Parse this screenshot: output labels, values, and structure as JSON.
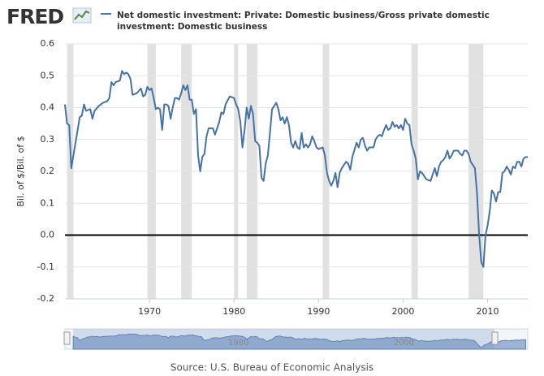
{
  "logo": "FRED",
  "chart_data": {
    "type": "line",
    "y_label": "Bil. of $/Bil. of $",
    "source": "Source: U.S. Bureau of Economic Analysis",
    "xlim": [
      1960,
      2014.75
    ],
    "ylim": [
      -0.2,
      0.6
    ],
    "xticks": [
      1970,
      1980,
      1990,
      2000,
      2010
    ],
    "yticks": [
      0.6,
      0.5,
      0.4,
      0.3,
      0.2,
      0.1,
      {
        "value": 0,
        "label": "0.0"
      },
      -0.1,
      -0.2
    ],
    "grid": true,
    "zero_line": true,
    "recessions": [
      [
        1960.25,
        1961.0
      ],
      [
        1969.75,
        1970.75
      ],
      [
        1973.75,
        1975.0
      ],
      [
        1980.0,
        1980.5
      ],
      [
        1981.5,
        1982.75
      ],
      [
        1990.5,
        1991.25
      ],
      [
        2001.0,
        2001.75
      ],
      [
        2007.75,
        2009.5
      ]
    ],
    "x": [
      1960.0,
      1960.25,
      1960.5,
      1960.75,
      1961.0,
      1961.5,
      1961.75,
      1962.0,
      1962.25,
      1962.5,
      1963.0,
      1963.25,
      1963.5,
      1964.0,
      1964.5,
      1965.0,
      1965.25,
      1965.5,
      1965.75,
      1966.0,
      1966.5,
      1966.75,
      1967.0,
      1967.25,
      1967.5,
      1967.75,
      1968.0,
      1968.5,
      1969.0,
      1969.25,
      1969.5,
      1969.75,
      1970.0,
      1970.25,
      1970.5,
      1970.75,
      1971.0,
      1971.25,
      1971.5,
      1971.75,
      1972.0,
      1972.25,
      1972.5,
      1972.75,
      1973.0,
      1973.25,
      1973.5,
      1973.75,
      1974.0,
      1974.25,
      1974.5,
      1974.75,
      1975.0,
      1975.25,
      1975.5,
      1975.75,
      1976.0,
      1976.25,
      1976.5,
      1976.75,
      1977.0,
      1977.5,
      1977.75,
      1978.25,
      1978.5,
      1978.75,
      1979.0,
      1979.5,
      1980.0,
      1980.25,
      1980.5,
      1980.75,
      1981.0,
      1981.25,
      1981.5,
      1981.75,
      1982.0,
      1982.25,
      1982.5,
      1982.75,
      1983.0,
      1983.25,
      1983.5,
      1983.75,
      1984.0,
      1984.25,
      1984.5,
      1985.0,
      1985.25,
      1985.5,
      1985.75,
      1986.0,
      1986.25,
      1986.5,
      1986.75,
      1987.0,
      1987.25,
      1987.5,
      1987.75,
      1988.0,
      1988.25,
      1988.5,
      1988.75,
      1989.0,
      1989.25,
      1989.5,
      1989.75,
      1990.0,
      1990.5,
      1990.75,
      1991.0,
      1991.25,
      1991.5,
      1991.75,
      1992.0,
      1992.25,
      1992.5,
      1992.75,
      1993.25,
      1993.5,
      1993.75,
      1994.0,
      1994.5,
      1994.75,
      1995.0,
      1995.25,
      1995.5,
      1995.75,
      1996.0,
      1996.5,
      1996.75,
      1997.0,
      1997.25,
      1997.5,
      1997.75,
      1998.0,
      1998.25,
      1998.5,
      1998.75,
      1999.0,
      1999.25,
      1999.5,
      1999.75,
      2000.0,
      2000.25,
      2000.5,
      2000.75,
      2001.0,
      2001.25,
      2001.5,
      2001.75,
      2002.0,
      2002.25,
      2002.5,
      2002.75,
      2003.25,
      2003.5,
      2003.75,
      2004.0,
      2004.25,
      2004.5,
      2004.75,
      2005.0,
      2005.25,
      2005.5,
      2005.75,
      2006.0,
      2006.5,
      2006.75,
      2007.0,
      2007.25,
      2007.5,
      2007.75,
      2008.0,
      2008.5,
      2008.75,
      2009.0,
      2009.25,
      2009.5,
      2009.75,
      2010.0,
      2010.25,
      2010.5,
      2010.75,
      2011.0,
      2011.25,
      2011.5,
      2011.75,
      2012.0,
      2012.25,
      2012.5,
      2012.75,
      2013.0,
      2013.25,
      2013.5,
      2013.75,
      2014.0,
      2014.25,
      2014.5,
      2014.75
    ],
    "series": [
      {
        "name": "Net domestic investment: Private: Domestic business/Gross private domestic investment: Domestic business",
        "color": "#4572a7",
        "values": [
          0.41,
          0.35,
          0.345,
          0.21,
          0.25,
          0.33,
          0.37,
          0.375,
          0.41,
          0.39,
          0.395,
          0.365,
          0.39,
          0.405,
          0.415,
          0.42,
          0.43,
          0.48,
          0.47,
          0.48,
          0.485,
          0.515,
          0.505,
          0.51,
          0.505,
          0.49,
          0.44,
          0.445,
          0.46,
          0.435,
          0.44,
          0.465,
          0.455,
          0.46,
          0.43,
          0.395,
          0.4,
          0.395,
          0.33,
          0.41,
          0.41,
          0.405,
          0.365,
          0.4,
          0.43,
          0.43,
          0.425,
          0.445,
          0.47,
          0.455,
          0.47,
          0.425,
          0.425,
          0.38,
          0.395,
          0.25,
          0.2,
          0.245,
          0.255,
          0.31,
          0.335,
          0.335,
          0.315,
          0.355,
          0.385,
          0.38,
          0.41,
          0.435,
          0.43,
          0.41,
          0.395,
          0.355,
          0.275,
          0.33,
          0.4,
          0.365,
          0.405,
          0.38,
          0.295,
          0.29,
          0.28,
          0.18,
          0.17,
          0.225,
          0.25,
          0.32,
          0.395,
          0.415,
          0.395,
          0.36,
          0.37,
          0.35,
          0.37,
          0.345,
          0.29,
          0.275,
          0.295,
          0.275,
          0.27,
          0.32,
          0.275,
          0.285,
          0.275,
          0.285,
          0.31,
          0.295,
          0.275,
          0.27,
          0.275,
          0.25,
          0.195,
          0.17,
          0.155,
          0.17,
          0.195,
          0.15,
          0.195,
          0.21,
          0.23,
          0.225,
          0.205,
          0.245,
          0.29,
          0.275,
          0.3,
          0.305,
          0.28,
          0.265,
          0.275,
          0.275,
          0.3,
          0.31,
          0.315,
          0.31,
          0.33,
          0.345,
          0.33,
          0.335,
          0.355,
          0.34,
          0.345,
          0.335,
          0.345,
          0.33,
          0.365,
          0.35,
          0.345,
          0.285,
          0.265,
          0.24,
          0.175,
          0.2,
          0.195,
          0.185,
          0.175,
          0.17,
          0.19,
          0.21,
          0.185,
          0.215,
          0.23,
          0.235,
          0.245,
          0.265,
          0.24,
          0.25,
          0.265,
          0.265,
          0.255,
          0.25,
          0.265,
          0.265,
          0.255,
          0.23,
          0.21,
          0.13,
          0.0,
          -0.085,
          -0.1,
          0.0,
          0.03,
          0.075,
          0.14,
          0.13,
          0.105,
          0.135,
          0.135,
          0.195,
          0.2,
          0.215,
          0.205,
          0.19,
          0.215,
          0.21,
          0.23,
          0.23,
          0.215,
          0.24,
          0.245,
          0.245
        ]
      }
    ],
    "navigator": {
      "xlim": [
        1959,
        2015
      ],
      "xticks": [
        1980,
        2000
      ]
    }
  }
}
